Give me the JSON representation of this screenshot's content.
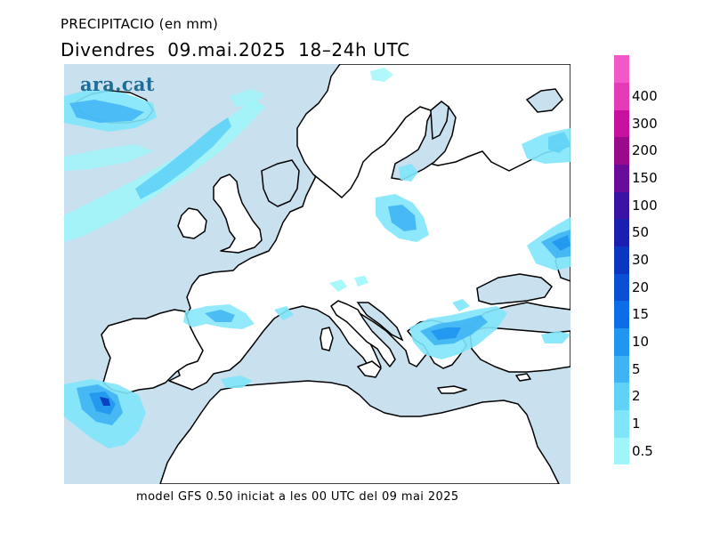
{
  "header": {
    "variable": "PRECIPITACIO (en mm)",
    "period": "Divendres  09.mai.2025  18–24h UTC"
  },
  "brand": {
    "logo_text": "ara.cat"
  },
  "footer": {
    "model_text": "model GFS 0.50 iniciat a les 00 UTC del 09 mai 2025"
  },
  "legend": {
    "unit": "mm",
    "levels": [
      {
        "label": "0.5",
        "color": "#9ef6fa"
      },
      {
        "label": "1",
        "color": "#7fe6fa"
      },
      {
        "label": "2",
        "color": "#5fd2f6"
      },
      {
        "label": "5",
        "color": "#3fb4f3"
      },
      {
        "label": "10",
        "color": "#1f96f0"
      },
      {
        "label": "15",
        "color": "#0b6ee6"
      },
      {
        "label": "20",
        "color": "#0a4fd6"
      },
      {
        "label": "30",
        "color": "#0a36c0"
      },
      {
        "label": "50",
        "color": "#1a1fb0"
      },
      {
        "label": "100",
        "color": "#3a12a6"
      },
      {
        "label": "150",
        "color": "#6a0c9a"
      },
      {
        "label": "200",
        "color": "#9a0a8a"
      },
      {
        "label": "300",
        "color": "#c8109e"
      },
      {
        "label": "400",
        "color": "#e43cb8"
      },
      {
        "label": "",
        "color": "#f258c8"
      }
    ]
  },
  "map": {
    "region": "Europe",
    "sea_color": "#c9e0ef",
    "land_color": "#ffffff",
    "coast_color": "#000000"
  }
}
